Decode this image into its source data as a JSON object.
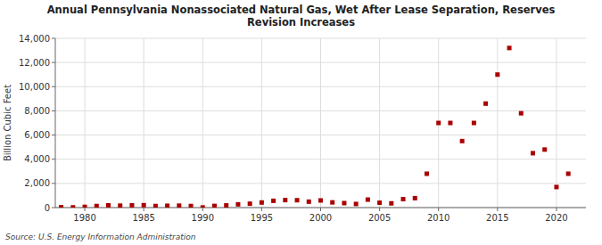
{
  "chart_data": {
    "type": "scatter",
    "title": "Annual Pennsylvania Nonassociated Natural Gas, Wet After Lease Separation, Reserves\nRevision Increases",
    "ylabel": "Billion Cubic Feet",
    "source": "Source: U.S. Energy Information Administration",
    "color": "#aa0000",
    "marker": "square",
    "grid": true,
    "xlim": [
      1977.5,
      2022.5
    ],
    "ylim": [
      0,
      14000
    ],
    "xticks": [
      1980,
      1985,
      1990,
      1995,
      2000,
      2005,
      2010,
      2015,
      2020
    ],
    "yticks": [
      0,
      {
        "value": 2000,
        "label": "2,000"
      },
      {
        "value": 4000,
        "label": "4,000"
      },
      {
        "value": 6000,
        "label": "6,000"
      },
      {
        "value": 8000,
        "label": "8,000"
      },
      {
        "value": 10000,
        "label": "10,000"
      },
      {
        "value": 12000,
        "label": "12,000"
      },
      {
        "value": 14000,
        "label": "14,000"
      }
    ],
    "x": [
      1978,
      1979,
      1980,
      1981,
      1982,
      1983,
      1984,
      1985,
      1986,
      1987,
      1988,
      1989,
      1990,
      1991,
      1992,
      1993,
      1994,
      1995,
      1996,
      1997,
      1998,
      1999,
      2000,
      2001,
      2002,
      2003,
      2004,
      2005,
      2006,
      2007,
      2008,
      2009,
      2010,
      2011,
      2012,
      2013,
      2014,
      2015,
      2016,
      2017,
      2018,
      2019,
      2020,
      2021
    ],
    "values": [
      30,
      20,
      60,
      130,
      190,
      160,
      190,
      200,
      130,
      150,
      160,
      130,
      10,
      140,
      180,
      270,
      320,
      420,
      560,
      620,
      610,
      490,
      590,
      430,
      370,
      300,
      660,
      400,
      350,
      700,
      780,
      2800,
      7000,
      7000,
      5500,
      7000,
      8600,
      11000,
      13200,
      7800,
      4500,
      4800,
      1700,
      2800
    ]
  }
}
